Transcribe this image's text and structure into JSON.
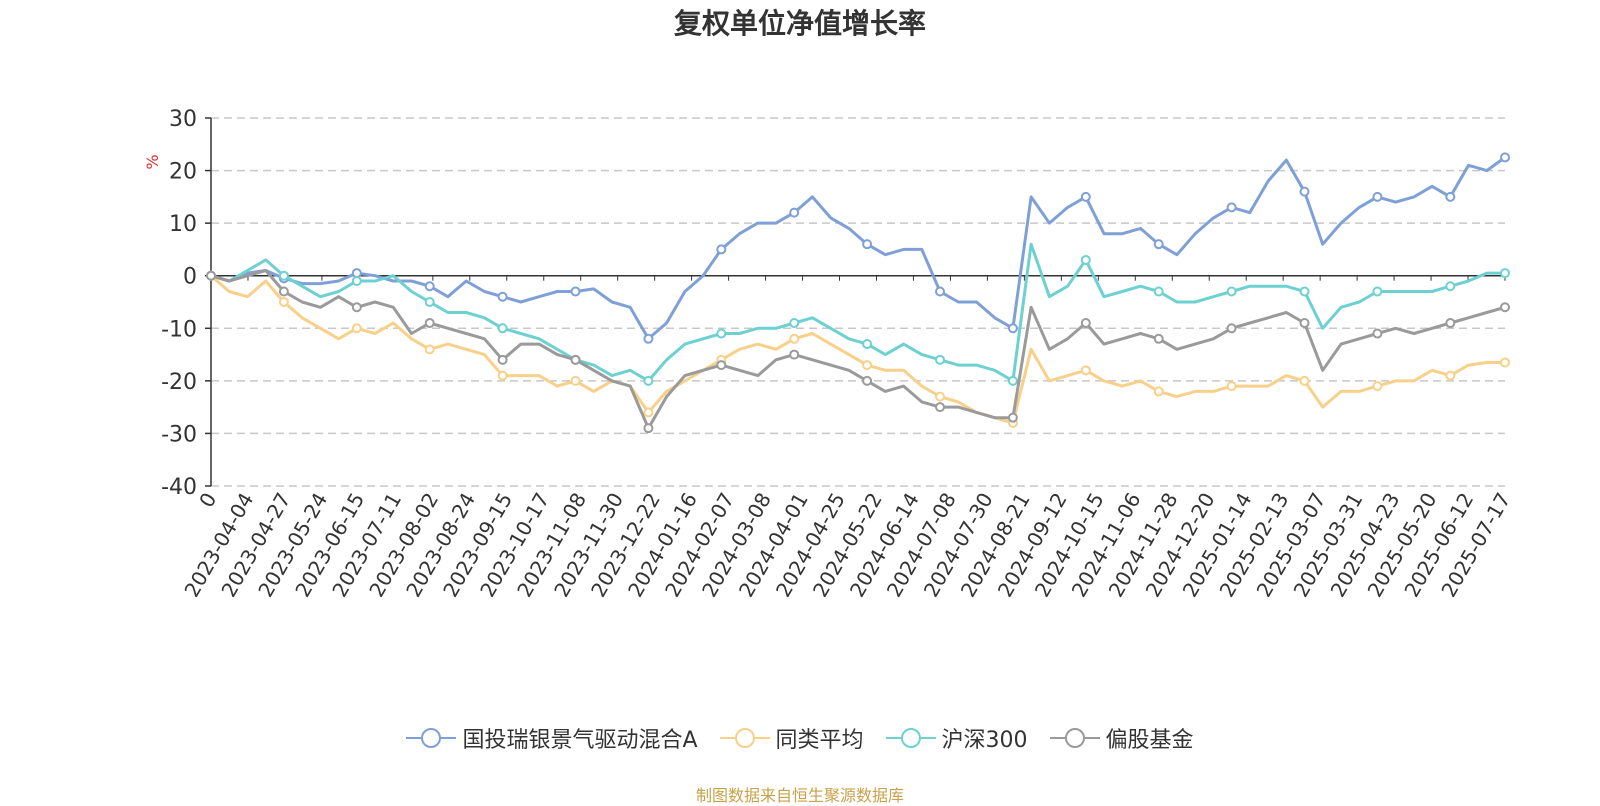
{
  "chart_data": {
    "type": "line",
    "title": "复权单位净值增长率",
    "ylabel": "%",
    "ylim": [
      -40,
      30
    ],
    "yticks": [
      30,
      20,
      10,
      0,
      -10,
      -20,
      -30,
      -40
    ],
    "grid": true,
    "legend_position": "bottom",
    "source_note": "制图数据来自恒生聚源数据库",
    "x_tick_labels": [
      "0",
      "2023-04-04",
      "2023-04-27",
      "2023-05-24",
      "2023-06-15",
      "2023-07-11",
      "2023-08-02",
      "2023-08-24",
      "2023-09-15",
      "2023-10-17",
      "2023-11-08",
      "2023-11-30",
      "2023-12-22",
      "2024-01-16",
      "2024-02-07",
      "2024-03-08",
      "2024-04-01",
      "2024-04-25",
      "2024-05-22",
      "2024-06-14",
      "2024-07-08",
      "2024-07-30",
      "2024-08-21",
      "2024-09-12",
      "2024-10-15",
      "2024-11-06",
      "2024-11-28",
      "2024-12-20",
      "2025-01-14",
      "2025-02-13",
      "2025-03-07",
      "2025-03-31",
      "2025-04-23",
      "2025-05-20",
      "2025-06-12",
      "2025-07-17"
    ],
    "series": [
      {
        "name": "国投瑞银景气驱动混合A",
        "color": "#7fa0d6",
        "values": [
          0,
          -1,
          0.5,
          1,
          -0.5,
          -1.5,
          -1.5,
          -1,
          0.5,
          0,
          -1,
          -1,
          -2,
          -4,
          -1,
          -3,
          -4,
          -5,
          -4,
          -3,
          -3,
          -2.5,
          -5,
          -6,
          -12,
          -9,
          -3,
          0,
          5,
          8,
          10,
          10,
          12,
          15,
          11,
          9,
          6,
          4,
          5,
          5,
          -3,
          -5,
          -5,
          -8,
          -10,
          15,
          10,
          13,
          15,
          8,
          8,
          9,
          6,
          4,
          8,
          11,
          13,
          12,
          18,
          22,
          16,
          6,
          10,
          13,
          15,
          14,
          15,
          17,
          15,
          21,
          20,
          22.5
        ]
      },
      {
        "name": "同类平均",
        "color": "#f8d08a",
        "values": [
          0,
          -3,
          -4,
          -1,
          -5,
          -8,
          -10,
          -12,
          -10,
          -11,
          -9,
          -12,
          -14,
          -13,
          -14,
          -15,
          -19,
          -19,
          -19,
          -21,
          -20,
          -22,
          -20,
          -21,
          -26,
          -22,
          -20,
          -18,
          -16,
          -14,
          -13,
          -14,
          -12,
          -11,
          -13,
          -15,
          -17,
          -18,
          -18,
          -21,
          -23,
          -24,
          -26,
          -27,
          -28,
          -14,
          -20,
          -19,
          -18,
          -20,
          -21,
          -20,
          -22,
          -23,
          -22,
          -22,
          -21,
          -21,
          -21,
          -19,
          -20,
          -25,
          -22,
          -22,
          -21,
          -20,
          -20,
          -18,
          -19,
          -17,
          -16.5,
          -16.5
        ]
      },
      {
        "name": "沪深300",
        "color": "#6dd1d1",
        "values": [
          0,
          -1,
          1,
          3,
          0,
          -2,
          -4,
          -3,
          -1,
          -1,
          0,
          -3,
          -5,
          -7,
          -7,
          -8,
          -10,
          -11,
          -12,
          -14,
          -16,
          -17,
          -19,
          -18,
          -20,
          -16,
          -13,
          -12,
          -11,
          -11,
          -10,
          -10,
          -9,
          -8,
          -10,
          -12,
          -13,
          -15,
          -13,
          -15,
          -16,
          -17,
          -17,
          -18,
          -20,
          6,
          -4,
          -2,
          3,
          -4,
          -3,
          -2,
          -3,
          -5,
          -5,
          -4,
          -3,
          -2,
          -2,
          -2,
          -3,
          -10,
          -6,
          -5,
          -3,
          -3,
          -3,
          -3,
          -2,
          -1,
          0.5,
          0.5
        ]
      },
      {
        "name": "偏股基金",
        "color": "#9a9a9a",
        "values": [
          0,
          -1,
          0,
          1,
          -3,
          -5,
          -6,
          -4,
          -6,
          -5,
          -6,
          -11,
          -9,
          -10,
          -11,
          -12,
          -16,
          -13,
          -13,
          -15,
          -16,
          -18,
          -20,
          -21,
          -29,
          -23,
          -19,
          -18,
          -17,
          -18,
          -19,
          -16,
          -15,
          -16,
          -17,
          -18,
          -20,
          -22,
          -21,
          -24,
          -25,
          -25,
          -26,
          -27,
          -27,
          -6,
          -14,
          -12,
          -9,
          -13,
          -12,
          -11,
          -12,
          -14,
          -13,
          -12,
          -10,
          -9,
          -8,
          -7,
          -9,
          -18,
          -13,
          -12,
          -11,
          -10,
          -11,
          -10,
          -9,
          -8,
          -7,
          -6
        ]
      }
    ]
  }
}
